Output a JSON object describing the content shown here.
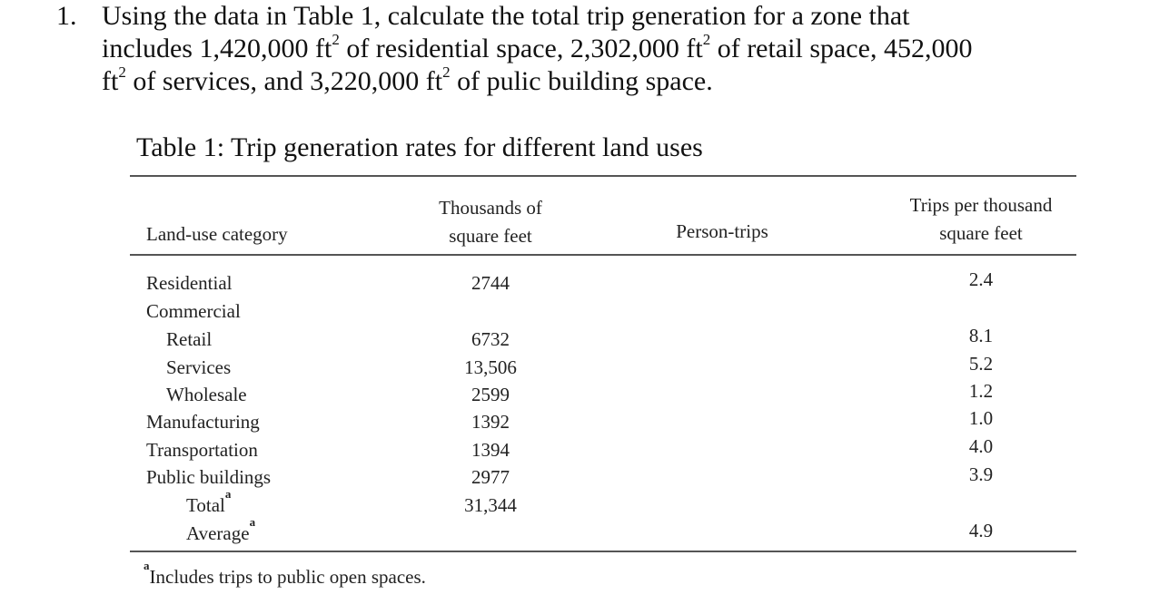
{
  "question": {
    "number": "1.",
    "lines": [
      {
        "pre": "Using the data in Table 1, calculate the total trip generation for a zone that"
      },
      {
        "pre": "includes 1,420,000 ft",
        "sup1": "2",
        "mid": " of residential space, 2,302,000 ft",
        "sup2": "2",
        "post": " of retail space, 452,000"
      },
      {
        "pre": "ft",
        "sup1": "2",
        "mid": " of services,  and 3,220,000 ft",
        "sup2": "2",
        "post": " of pulic building space."
      }
    ]
  },
  "table": {
    "title": "Table 1: Trip generation rates for different land uses",
    "headers": {
      "land_use": "Land-use category",
      "thousands_line1": "Thousands of",
      "thousands_line2": "square feet",
      "person_trips": "Person-trips",
      "trips_line1": "Trips per thousand",
      "trips_line2": "square feet"
    },
    "rows": [
      {
        "category": "Residential",
        "sqft": "2744",
        "rate": "2.4"
      },
      {
        "category": "Commercial",
        "sqft": "",
        "rate": ""
      },
      {
        "category": "Retail",
        "sqft": "6732",
        "rate": "8.1"
      },
      {
        "category": "Services",
        "sqft": "13,506",
        "rate": "5.2"
      },
      {
        "category": "Wholesale",
        "sqft": "2599",
        "rate": "1.2"
      },
      {
        "category": "Manufacturing",
        "sqft": "1392",
        "rate": "1.0"
      },
      {
        "category": "Transportation",
        "sqft": "1394",
        "rate": "4.0"
      },
      {
        "category": "Public buildings",
        "sqft": "2977",
        "rate": "3.9"
      },
      {
        "category": "Total",
        "sup": "a",
        "sqft": "31,344",
        "rate": ""
      },
      {
        "category": "Average",
        "sup": "a",
        "sqft": "",
        "rate": "4.9"
      }
    ],
    "footnote_marker": "a",
    "footnote": "Includes trips to public open spaces."
  }
}
